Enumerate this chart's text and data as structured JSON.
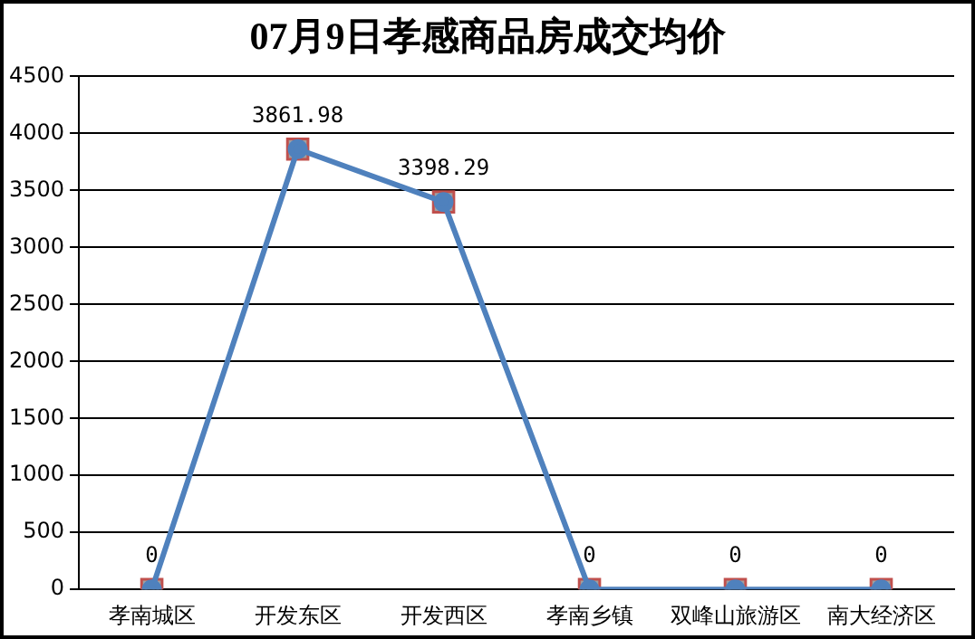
{
  "chart_data": {
    "type": "line",
    "title": "07月9日孝感商品房成交均价",
    "categories": [
      "孝南城区",
      "开发东区",
      "开发西区",
      "孝南乡镇",
      "双峰山旅游区",
      "南大经济区"
    ],
    "series": [
      {
        "type": "scatter",
        "color": "#c0504d",
        "marker": "square",
        "values": [
          0,
          3861.98,
          3398.29,
          0,
          0,
          0
        ],
        "value_labels": [
          null,
          null,
          null,
          null,
          null,
          null
        ]
      },
      {
        "color": "#4f81bd",
        "marker": "circle",
        "line_style": "solid",
        "values": [
          0,
          3861.98,
          3398.29,
          0,
          0,
          0
        ]
      }
    ],
    "ylim": [
      0,
      4500
    ],
    "yticks": [
      0,
      500,
      1000,
      1500,
      2000,
      2500,
      3000,
      3500,
      4000,
      4500
    ],
    "grid": "y",
    "legend": false,
    "data_labels": true
  }
}
